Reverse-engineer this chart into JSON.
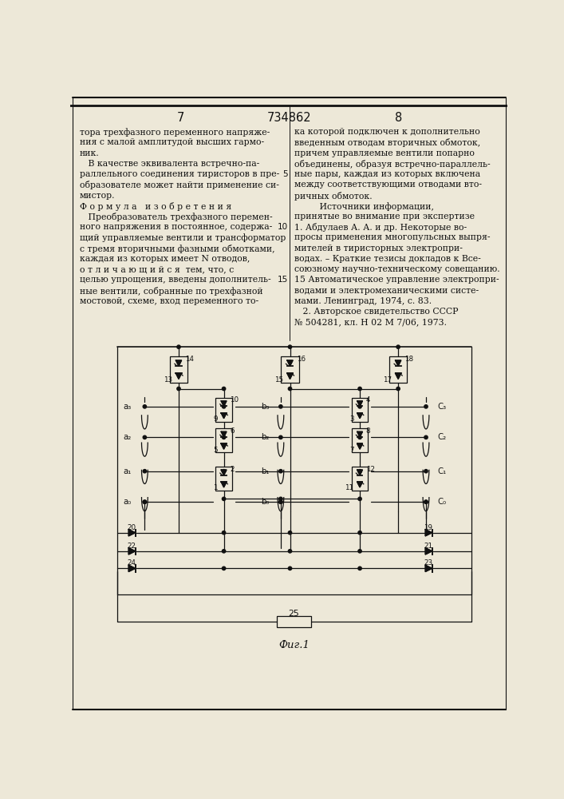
{
  "bg_color": "#ede8d8",
  "text_color": "#111111",
  "title_number": "734862",
  "page_left": "7",
  "page_right": "8",
  "fig_caption": "Фиг.1",
  "left_col_lines": [
    "тора трехфазного переменного напряже-",
    "ния с малой амплитудой высших гармо-",
    "ник.",
    "   В качестве эквивалента встречно-па-",
    "раллельного соединения тиристоров в пре-",
    "образователе может найти применение си-",
    "мистор.",
    "Ф о р м у л а   и з о б р е т е н и я",
    "   Преобразователь трехфазного перемен-",
    "ного напряжения в постоянное, содержа-",
    "щий управляемые вентили и трансформатор",
    "с тремя вторичными фазными обмотками,",
    "каждая из которых имеет N отводов,",
    "о т л и ч а ю щ и й с я  тем, что, с",
    "целью упрощения, введены дополнитель-",
    "ные вентили, собранные по трехфазной",
    "мостовой, схеме, вход переменного то-"
  ],
  "right_col_lines": [
    "ка которой подключен к дополнительно",
    "введенным отводам вторичных обмоток,",
    "причем управляемые вентили попарно",
    "объединены, образуя встречно-параллель-",
    "ные пары, каждая из которых включена",
    "между соответствующими отводами вто-",
    "ричных обмоток.",
    "         Источники информации,",
    "принятые во внимание при экспертизе",
    "1. Абдулаев А. А. и др. Некоторые во-",
    "просы применения многопульсных выпря-",
    "мителей в тиристорных электропри-",
    "водах. – Краткие тезисы докладов к Все-",
    "союзному научно-техническому совещанию.",
    "15 Автоматическое управление электропри-",
    "водами и электромеханическими систе-",
    "мами. Ленинград, 1974, с. 83.",
    "   2. Авторское свидетельство СССР",
    "№ 504281, кл. Н 02 М 7/06, 1973."
  ]
}
